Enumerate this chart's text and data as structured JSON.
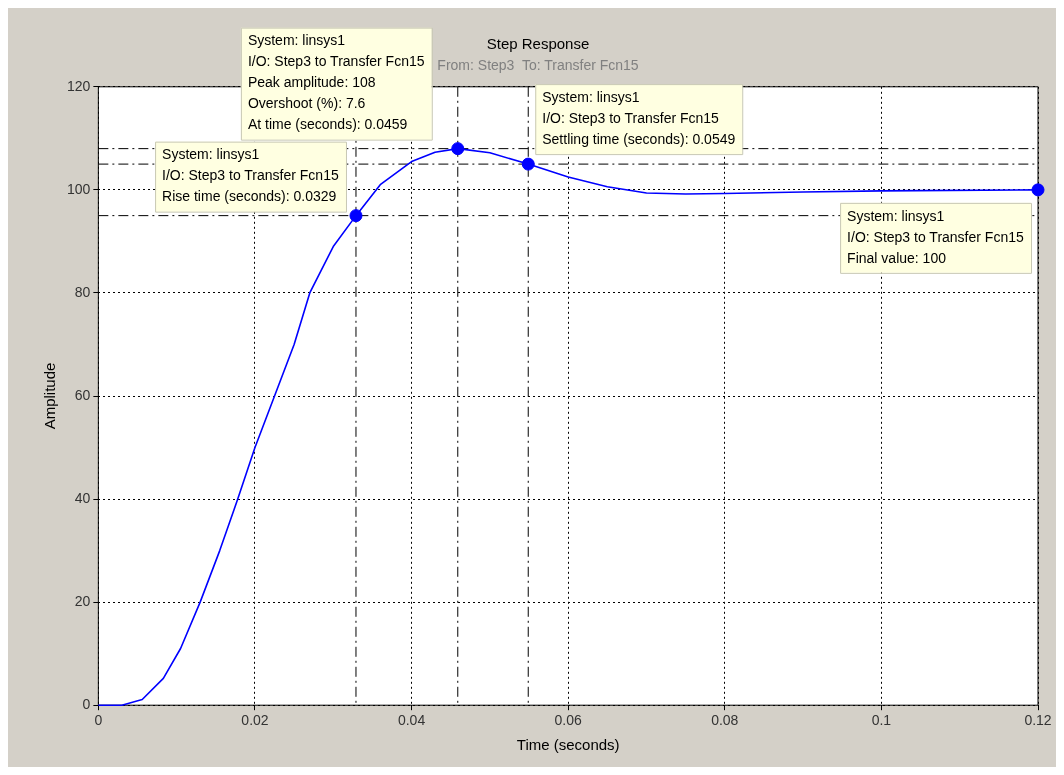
{
  "chart_data": {
    "type": "line",
    "title": "Step Response",
    "subtitle": "From: Step3  To: Transfer Fcn15",
    "xlabel": "Time (seconds)",
    "ylabel": "Amplitude",
    "xlim": [
      0,
      0.12
    ],
    "xticks": [
      0,
      0.02,
      0.04,
      0.06,
      0.08,
      0.1,
      0.12
    ],
    "ylim": [
      0,
      120
    ],
    "yticks": [
      0,
      20,
      40,
      60,
      80,
      100,
      120
    ],
    "grid": true,
    "line_style": "solid",
    "series": [
      {
        "marker": "none",
        "color": "#0000ff",
        "x": [
          0,
          0.003,
          0.0056,
          0.0083,
          0.0105,
          0.013,
          0.0155,
          0.0178,
          0.02,
          0.0225,
          0.025,
          0.027,
          0.03,
          0.0329,
          0.036,
          0.04,
          0.043,
          0.0459,
          0.05,
          0.0549,
          0.06,
          0.065,
          0.07,
          0.075,
          0.08,
          0.09,
          0.1,
          0.12
        ],
        "values": [
          0,
          0,
          1.1,
          5.2,
          11,
          20,
          30,
          40,
          50,
          60,
          70,
          80,
          89,
          95,
          101,
          105.5,
          107.3,
          108,
          107.2,
          105,
          102.5,
          100.6,
          99.4,
          99.2,
          99.3,
          99.6,
          99.8,
          100
        ]
      },
      {
        "type": "scatter",
        "marker": "circle",
        "color": "#0000ff",
        "x": [
          0.0329,
          0.0459,
          0.0549,
          0.12
        ],
        "values": [
          95,
          108,
          105,
          100
        ]
      }
    ],
    "ref_lines": [
      {
        "axis": "y",
        "value": 108,
        "line_style": "dashed"
      },
      {
        "axis": "y",
        "value": 105,
        "line_style": "dashed"
      },
      {
        "axis": "y",
        "value": 95,
        "line_style": "dashed"
      },
      {
        "axis": "x",
        "value": 0.0329,
        "line_style": "dashed"
      },
      {
        "axis": "x",
        "value": 0.0459,
        "line_style": "dashed"
      },
      {
        "axis": "x",
        "value": 0.0549,
        "line_style": "dashed"
      }
    ],
    "annotations": [
      {
        "text": "System: linsys1\nI/O: Step3 to Transfer Fcn15\nRise time (seconds): 0.0329",
        "x": 0.0329,
        "y": 95
      },
      {
        "text": "System: linsys1\nI/O: Step3 to Transfer Fcn15\nPeak amplitude: 108\nOvershoot (%): 7.6\nAt time (seconds): 0.0459",
        "x": 0.0459,
        "y": 108
      },
      {
        "text": "System: linsys1\nI/O: Step3 to Transfer Fcn15\nSettling time (seconds): 0.0549",
        "x": 0.0549,
        "y": 105
      },
      {
        "text": "System: linsys1\nI/O: Step3 to Transfer Fcn15\nFinal value: 100",
        "x": 0.12,
        "y": 100
      }
    ]
  }
}
